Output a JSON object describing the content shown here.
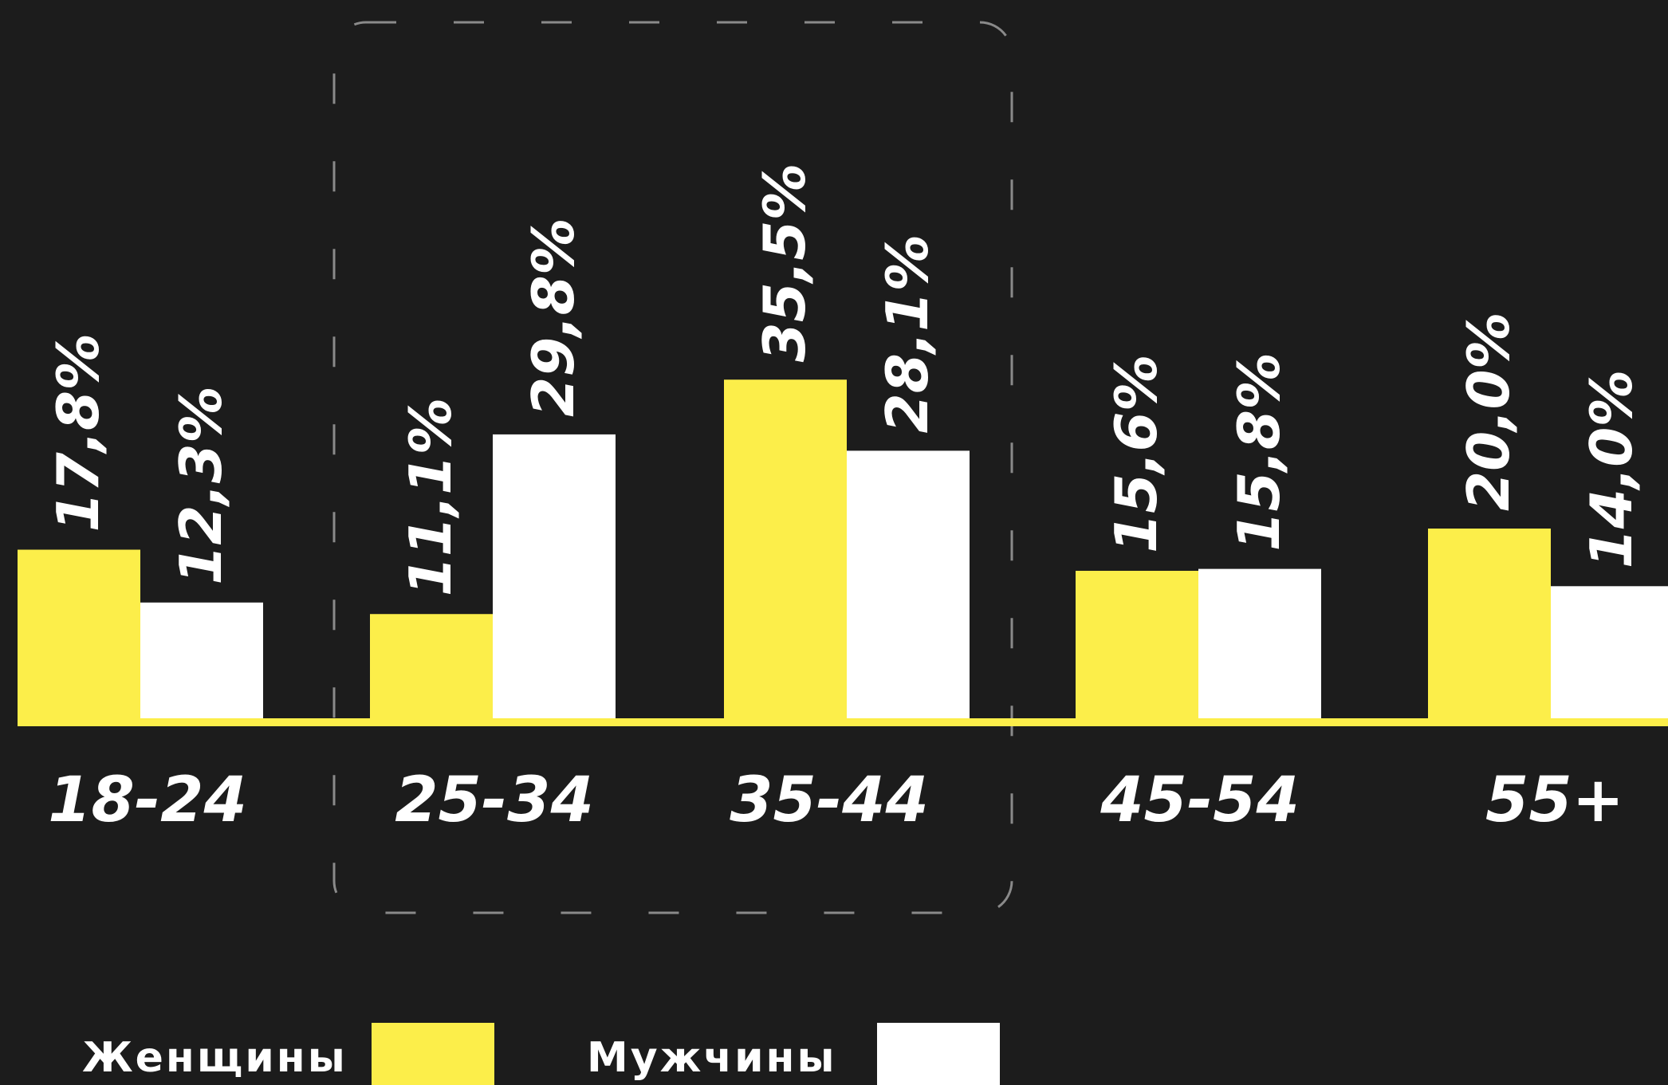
{
  "chart_data": {
    "type": "bar",
    "categories": [
      "18-24",
      "25-34",
      "35-44",
      "45-54",
      "55+"
    ],
    "series": [
      {
        "name": "Женщины",
        "values": [
          17.8,
          11.1,
          35.5,
          15.6,
          20.0
        ],
        "labels": [
          "17,8%",
          "11,1%",
          "35,5%",
          "15,6%",
          "20,0%"
        ]
      },
      {
        "name": "Мужчины",
        "values": [
          12.3,
          29.8,
          28.1,
          15.8,
          14.0
        ],
        "labels": [
          "12,3%",
          "29,8%",
          "28,1%",
          "15,8%",
          "14,0%"
        ]
      }
    ],
    "highlighted_categories": [
      "25-34",
      "35-44"
    ],
    "legend": "bottom",
    "grid": false,
    "colors": {
      "Женщины": "#fcee4a",
      "Мужчины": "#ffffff",
      "background": "#1c1c1c",
      "highlight_border": "#8a8a8a"
    }
  }
}
